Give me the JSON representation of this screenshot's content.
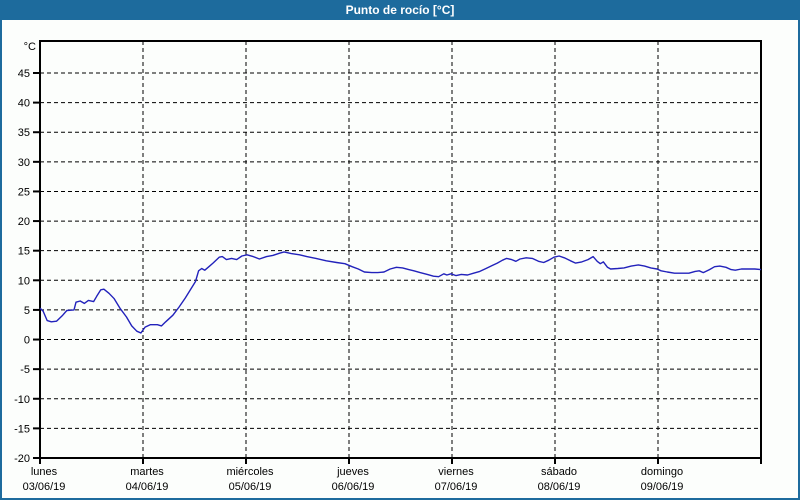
{
  "window": {
    "title": "Punto de rocío [°C]"
  },
  "colors": {
    "header_bg": "#1d6b9d",
    "frame_border": "#1d6b9d",
    "background": "#fcfefc",
    "title_text": "#ffffff",
    "plot_border": "#000000",
    "grid": "#000000",
    "line": "#2222bb"
  },
  "chart_data": {
    "type": "line",
    "title": "Punto de rocío [°C]",
    "ylabel": "°C",
    "xlabel": "",
    "grid": true,
    "legend_position": "none",
    "ylim": [
      -20,
      50.4
    ],
    "y_ticks": [
      45,
      40,
      35,
      30,
      25,
      20,
      15,
      10,
      5,
      0,
      -5,
      -10,
      -15,
      -20
    ],
    "x_days": [
      {
        "name": "lunes",
        "date": "03/06/19"
      },
      {
        "name": "martes",
        "date": "04/06/19"
      },
      {
        "name": "miércoles",
        "date": "05/06/19"
      },
      {
        "name": "jueves",
        "date": "06/06/19"
      },
      {
        "name": "viernes",
        "date": "07/06/19"
      },
      {
        "name": "sábado",
        "date": "08/06/19"
      },
      {
        "name": "domingo",
        "date": "09/06/19"
      }
    ],
    "series": [
      {
        "name": "Punto de rocío",
        "color": "#2222bb",
        "x_unit": "days_from_monday_00h",
        "points": [
          [
            0,
            5.3
          ],
          [
            0.03,
            4.8
          ],
          [
            0.07,
            3.2
          ],
          [
            0.11,
            3.0
          ],
          [
            0.16,
            3.1
          ],
          [
            0.22,
            4.1
          ],
          [
            0.26,
            4.9
          ],
          [
            0.33,
            5.0
          ],
          [
            0.35,
            6.3
          ],
          [
            0.39,
            6.5
          ],
          [
            0.43,
            6.1
          ],
          [
            0.47,
            6.6
          ],
          [
            0.52,
            6.4
          ],
          [
            0.55,
            7.3
          ],
          [
            0.59,
            8.4
          ],
          [
            0.62,
            8.5
          ],
          [
            0.67,
            7.8
          ],
          [
            0.72,
            6.9
          ],
          [
            0.78,
            5.2
          ],
          [
            0.84,
            3.8
          ],
          [
            0.89,
            2.3
          ],
          [
            0.94,
            1.4
          ],
          [
            0.98,
            1.1
          ],
          [
            1.02,
            2.1
          ],
          [
            1.07,
            2.5
          ],
          [
            1.14,
            2.5
          ],
          [
            1.18,
            2.3
          ],
          [
            1.22,
            3.0
          ],
          [
            1.29,
            4.1
          ],
          [
            1.35,
            5.5
          ],
          [
            1.41,
            7.0
          ],
          [
            1.46,
            8.4
          ],
          [
            1.51,
            9.8
          ],
          [
            1.54,
            11.6
          ],
          [
            1.57,
            12.0
          ],
          [
            1.6,
            11.7
          ],
          [
            1.64,
            12.3
          ],
          [
            1.68,
            12.9
          ],
          [
            1.74,
            13.9
          ],
          [
            1.77,
            14.0
          ],
          [
            1.81,
            13.5
          ],
          [
            1.86,
            13.7
          ],
          [
            1.91,
            13.5
          ],
          [
            1.96,
            14.1
          ],
          [
            2.01,
            14.3
          ],
          [
            2.07,
            14.0
          ],
          [
            2.13,
            13.6
          ],
          [
            2.2,
            14.0
          ],
          [
            2.26,
            14.2
          ],
          [
            2.33,
            14.6
          ],
          [
            2.37,
            14.8
          ],
          [
            2.44,
            14.5
          ],
          [
            2.52,
            14.3
          ],
          [
            2.59,
            14.0
          ],
          [
            2.68,
            13.7
          ],
          [
            2.78,
            13.3
          ],
          [
            2.88,
            13.0
          ],
          [
            2.96,
            12.8
          ],
          [
            3.03,
            12.3
          ],
          [
            3.09,
            11.9
          ],
          [
            3.15,
            11.4
          ],
          [
            3.22,
            11.3
          ],
          [
            3.28,
            11.3
          ],
          [
            3.34,
            11.4
          ],
          [
            3.4,
            11.9
          ],
          [
            3.46,
            12.2
          ],
          [
            3.52,
            12.1
          ],
          [
            3.58,
            11.8
          ],
          [
            3.63,
            11.6
          ],
          [
            3.69,
            11.3
          ],
          [
            3.76,
            11.0
          ],
          [
            3.82,
            10.7
          ],
          [
            3.87,
            10.6
          ],
          [
            3.92,
            11.1
          ],
          [
            3.95,
            10.9
          ],
          [
            3.99,
            11.1
          ],
          [
            4.04,
            10.8
          ],
          [
            4.09,
            11.0
          ],
          [
            4.15,
            10.9
          ],
          [
            4.21,
            11.2
          ],
          [
            4.27,
            11.5
          ],
          [
            4.33,
            12.0
          ],
          [
            4.39,
            12.5
          ],
          [
            4.44,
            12.9
          ],
          [
            4.49,
            13.4
          ],
          [
            4.53,
            13.7
          ],
          [
            4.58,
            13.5
          ],
          [
            4.62,
            13.2
          ],
          [
            4.66,
            13.6
          ],
          [
            4.72,
            13.8
          ],
          [
            4.78,
            13.7
          ],
          [
            4.84,
            13.2
          ],
          [
            4.89,
            13.0
          ],
          [
            4.94,
            13.4
          ],
          [
            4.99,
            13.9
          ],
          [
            5.04,
            14.1
          ],
          [
            5.09,
            13.8
          ],
          [
            5.15,
            13.3
          ],
          [
            5.2,
            12.9
          ],
          [
            5.26,
            13.1
          ],
          [
            5.32,
            13.5
          ],
          [
            5.37,
            14.0
          ],
          [
            5.41,
            13.2
          ],
          [
            5.44,
            12.8
          ],
          [
            5.47,
            13.1
          ],
          [
            5.51,
            12.2
          ],
          [
            5.54,
            11.9
          ],
          [
            5.61,
            12.0
          ],
          [
            5.67,
            12.1
          ],
          [
            5.74,
            12.4
          ],
          [
            5.81,
            12.6
          ],
          [
            5.87,
            12.4
          ],
          [
            5.93,
            12.1
          ],
          [
            5.99,
            11.9
          ],
          [
            6.03,
            11.6
          ],
          [
            6.09,
            11.4
          ],
          [
            6.16,
            11.2
          ],
          [
            6.23,
            11.2
          ],
          [
            6.3,
            11.2
          ],
          [
            6.36,
            11.5
          ],
          [
            6.4,
            11.6
          ],
          [
            6.44,
            11.3
          ],
          [
            6.5,
            11.8
          ],
          [
            6.55,
            12.3
          ],
          [
            6.6,
            12.4
          ],
          [
            6.66,
            12.2
          ],
          [
            6.71,
            11.8
          ],
          [
            6.75,
            11.7
          ],
          [
            6.81,
            11.9
          ],
          [
            6.88,
            11.9
          ],
          [
            6.94,
            11.9
          ],
          [
            7,
            11.8
          ]
        ]
      }
    ]
  }
}
